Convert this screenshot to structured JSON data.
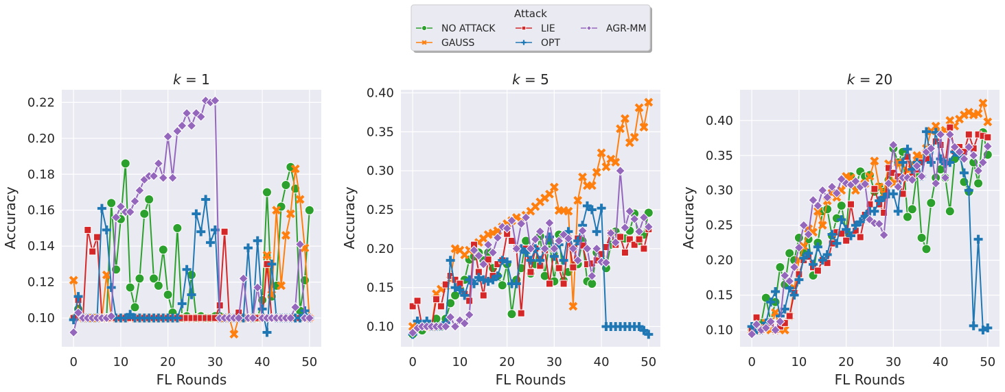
{
  "chart_data": {
    "type": "line",
    "legend": {
      "title": "Attack",
      "placement": "top-center",
      "order": [
        "no_attack",
        "lie",
        "agrmm",
        "gauss",
        "opt"
      ]
    },
    "series_defs": {
      "no_attack": {
        "name": "NO ATTACK",
        "color": "#2ca02c",
        "marker": "circle"
      },
      "gauss": {
        "name": "GAUSS",
        "color": "#ff7f0e",
        "marker": "x"
      },
      "lie": {
        "name": "LIE",
        "color": "#d62728",
        "marker": "square"
      },
      "opt": {
        "name": "OPT",
        "color": "#1f77b4",
        "marker": "plus"
      },
      "agrmm": {
        "name": "AGR-MM",
        "color": "#9467bd",
        "marker": "diamond"
      }
    },
    "panels": [
      {
        "title_prefix": "k",
        "title_value": "= 1",
        "xlabel": "FL Rounds",
        "ylabel": "Accuracy",
        "xlim": [
          -2.5,
          52.5
        ],
        "ylim": [
          0.084,
          0.227
        ],
        "xticks": [
          0,
          10,
          20,
          30,
          40,
          50
        ],
        "yticks": [
          0.1,
          0.12,
          0.14,
          0.16,
          0.18,
          0.2,
          0.22
        ],
        "ytick_labels": [
          "0.10",
          "0.12",
          "0.14",
          "0.16",
          "0.18",
          "0.20",
          "0.22"
        ],
        "series": {
          "no_attack": [
            0.1,
            0.105,
            0.1,
            0.1,
            0.1,
            0.1,
            0.1,
            0.1,
            0.164,
            0.127,
            0.155,
            0.186,
            0.117,
            0.106,
            0.122,
            0.158,
            0.166,
            0.122,
            0.118,
            0.138,
            0.113,
            0.103,
            0.15,
            0.1,
            0.101,
            0.124,
            0.1,
            0.101,
            0.1,
            0.1,
            0.101,
            0.101,
            0.1,
            0.1,
            0.1,
            0.1,
            0.1,
            0.1,
            0.1,
            0.1,
            0.11,
            0.17,
            0.112,
            0.118,
            0.162,
            0.174,
            0.184,
            0.172,
            0.104,
            0.121,
            0.16
          ],
          "gauss": [
            0.121,
            0.1,
            0.1,
            0.1,
            0.1,
            0.1,
            0.1,
            0.124,
            0.1,
            0.1,
            0.1,
            0.1,
            0.1,
            0.1,
            0.1,
            0.1,
            0.1,
            0.1,
            0.1,
            0.1,
            0.1,
            0.1,
            0.1,
            0.1,
            0.1,
            0.1,
            0.1,
            0.1,
            0.1,
            0.1,
            0.1,
            0.1,
            0.1,
            0.1,
            0.091,
            0.1,
            0.1,
            0.1,
            0.1,
            0.1,
            0.1,
            0.135,
            0.113,
            0.16,
            0.118,
            0.146,
            0.158,
            0.183,
            0.166,
            0.139,
            0.1
          ],
          "lie": [
            0.1,
            0.11,
            0.1,
            0.149,
            0.137,
            0.145,
            0.1,
            0.1,
            0.1,
            0.1,
            0.1,
            0.1,
            0.1,
            0.1,
            0.1,
            0.1,
            0.1,
            0.1,
            0.1,
            0.1,
            0.1,
            0.1,
            0.1,
            0.1,
            0.1,
            0.1,
            0.1,
            0.1,
            0.1,
            0.1,
            0.1,
            0.107,
            0.148,
            0.1,
            0.1,
            0.103,
            0.1,
            0.1,
            0.1,
            0.1,
            0.1,
            0.13,
            0.1,
            0.1,
            0.1,
            0.1,
            0.1,
            0.1,
            0.1,
            0.1,
            0.1
          ],
          "opt": [
            0.099,
            0.112,
            0.1,
            0.1,
            0.1,
            0.1,
            0.161,
            0.149,
            0.117,
            0.1,
            0.1,
            0.1,
            0.102,
            0.1,
            0.1,
            0.1,
            0.1,
            0.1,
            0.1,
            0.1,
            0.1,
            0.1,
            0.1,
            0.108,
            0.127,
            0.113,
            0.158,
            0.148,
            0.166,
            0.142,
            0.149,
            0.1,
            0.1,
            0.1,
            0.1,
            0.1,
            0.1,
            0.139,
            0.1,
            0.143,
            0.105,
            0.092,
            0.13,
            0.1,
            0.1,
            0.1,
            0.1,
            0.1,
            0.1,
            0.104,
            0.1
          ],
          "agrmm": [
            0.092,
            0.103,
            0.1,
            0.1,
            0.1,
            0.1,
            0.1,
            0.1,
            0.101,
            0.156,
            0.162,
            0.159,
            0.159,
            0.165,
            0.171,
            0.177,
            0.179,
            0.179,
            0.186,
            0.178,
            0.201,
            0.178,
            0.204,
            0.207,
            0.214,
            0.207,
            0.214,
            0.212,
            0.221,
            0.22,
            0.221,
            0.1,
            0.1,
            0.1,
            0.1,
            0.1,
            0.122,
            0.1,
            0.1,
            0.117,
            0.1,
            0.1,
            0.1,
            0.1,
            0.1,
            0.1,
            0.1,
            0.106,
            0.141,
            0.1,
            0.1
          ]
        }
      },
      {
        "title_prefix": "k",
        "title_value": "= 5",
        "xlabel": "FL Rounds",
        "ylabel": "Accuracy",
        "xlim": [
          -2.5,
          52.5
        ],
        "ylim": [
          0.074,
          0.404
        ],
        "xticks": [
          0,
          10,
          20,
          30,
          40,
          50
        ],
        "yticks": [
          0.1,
          0.15,
          0.2,
          0.25,
          0.3,
          0.35,
          0.4
        ],
        "ytick_labels": [
          "0.10",
          "0.15",
          "0.20",
          "0.25",
          "0.30",
          "0.35",
          "0.40"
        ],
        "series": {
          "no_attack": [
            0.09,
            0.1,
            0.095,
            0.1,
            0.1,
            0.11,
            0.1,
            0.11,
            0.13,
            0.14,
            0.15,
            0.16,
            0.186,
            0.19,
            0.195,
            0.185,
            0.195,
            0.175,
            0.165,
            0.153,
            0.18,
            0.116,
            0.16,
            0.175,
            0.21,
            0.168,
            0.18,
            0.216,
            0.165,
            0.21,
            0.158,
            0.218,
            0.159,
            0.17,
            0.178,
            0.18,
            0.21,
            0.158,
            0.155,
            0.195,
            0.19,
            0.175,
            0.205,
            0.222,
            0.215,
            0.213,
            0.223,
            0.245,
            0.21,
            0.218,
            0.246
          ],
          "gauss": [
            0.1,
            0.1,
            0.1,
            0.1,
            0.1,
            0.142,
            0.148,
            0.152,
            0.16,
            0.2,
            0.198,
            0.192,
            0.198,
            0.203,
            0.208,
            0.213,
            0.218,
            0.22,
            0.223,
            0.228,
            0.232,
            0.236,
            0.24,
            0.236,
            0.243,
            0.248,
            0.254,
            0.26,
            0.265,
            0.27,
            0.279,
            0.249,
            0.249,
            0.248,
            0.126,
            0.262,
            0.292,
            0.281,
            0.281,
            0.298,
            0.323,
            0.305,
            0.315,
            0.311,
            0.354,
            0.367,
            0.336,
            0.343,
            0.381,
            0.356,
            0.388
          ],
          "lie": [
            0.126,
            0.133,
            0.1,
            0.1,
            0.1,
            0.135,
            0.126,
            0.154,
            0.165,
            0.16,
            0.155,
            0.142,
            0.133,
            0.205,
            0.17,
            0.14,
            0.186,
            0.165,
            0.18,
            0.185,
            0.219,
            0.21,
            0.2,
            0.117,
            0.2,
            0.17,
            0.2,
            0.178,
            0.198,
            0.155,
            0.2,
            0.175,
            0.155,
            0.213,
            0.176,
            0.213,
            0.204,
            0.18,
            0.181,
            0.185,
            0.193,
            0.202,
            0.22,
            0.205,
            0.215,
            0.195,
            0.212,
            0.205,
            0.212,
            0.2,
            0.225
          ],
          "opt": [
            0.09,
            0.107,
            0.1,
            0.107,
            0.1,
            0.1,
            0.1,
            0.105,
            0.185,
            0.15,
            0.147,
            0.14,
            0.16,
            0.155,
            0.163,
            0.16,
            0.158,
            0.16,
            0.165,
            0.185,
            0.183,
            0.155,
            0.155,
            0.2,
            0.195,
            0.185,
            0.2,
            0.185,
            0.2,
            0.215,
            0.19,
            0.205,
            0.185,
            0.222,
            0.2,
            0.21,
            0.23,
            0.255,
            0.25,
            0.222,
            0.252,
            0.1,
            0.1,
            0.1,
            0.1,
            0.1,
            0.1,
            0.1,
            0.1,
            0.095,
            0.09
          ],
          "agrmm": [
            0.092,
            0.098,
            0.1,
            0.1,
            0.1,
            0.1,
            0.1,
            0.1,
            0.112,
            0.1,
            0.108,
            0.104,
            0.115,
            0.198,
            0.191,
            0.18,
            0.205,
            0.195,
            0.214,
            0.228,
            0.226,
            0.236,
            0.2,
            0.232,
            0.24,
            0.2,
            0.212,
            0.222,
            0.2,
            0.233,
            0.2,
            0.21,
            0.218,
            0.213,
            0.2,
            0.185,
            0.223,
            0.2,
            0.165,
            0.2,
            0.183,
            0.182,
            0.22,
            0.208,
            0.3,
            0.227,
            0.248,
            0.238,
            0.222,
            0.24,
            0.228
          ]
        }
      },
      {
        "title_prefix": "k",
        "title_value": "= 20",
        "xlabel": "FL Rounds",
        "ylabel": "Accuracy",
        "xlim": [
          -2.5,
          52.5
        ],
        "ylim": [
          0.076,
          0.444
        ],
        "xticks": [
          0,
          10,
          20,
          30,
          40,
          50
        ],
        "yticks": [
          0.1,
          0.15,
          0.2,
          0.25,
          0.3,
          0.35,
          0.4
        ],
        "ytick_labels": [
          "0.10",
          "0.15",
          "0.20",
          "0.25",
          "0.30",
          "0.35",
          "0.40"
        ],
        "series": {
          "no_attack": [
            0.1,
            0.1,
            0.11,
            0.146,
            0.112,
            0.14,
            0.19,
            0.165,
            0.21,
            0.2,
            0.232,
            0.21,
            0.23,
            0.178,
            0.225,
            0.27,
            0.273,
            0.235,
            0.26,
            0.278,
            0.24,
            0.32,
            0.305,
            0.327,
            0.32,
            0.322,
            0.298,
            0.305,
            0.298,
            0.315,
            0.36,
            0.34,
            0.355,
            0.262,
            0.273,
            0.325,
            0.232,
            0.216,
            0.282,
            0.318,
            0.33,
            0.318,
            0.27,
            0.345,
            0.36,
            0.312,
            0.298,
            0.34,
            0.31,
            0.383,
            0.351
          ],
          "gauss": [
            0.1,
            0.1,
            0.105,
            0.11,
            0.1,
            0.125,
            0.1,
            0.1,
            0.12,
            0.16,
            0.2,
            0.22,
            0.245,
            0.24,
            0.27,
            0.25,
            0.285,
            0.296,
            0.29,
            0.3,
            0.32,
            0.318,
            0.3,
            0.31,
            0.31,
            0.32,
            0.342,
            0.305,
            0.295,
            0.338,
            0.31,
            0.34,
            0.318,
            0.328,
            0.338,
            0.35,
            0.348,
            0.36,
            0.385,
            0.392,
            0.383,
            0.386,
            0.4,
            0.392,
            0.402,
            0.408,
            0.412,
            0.408,
            0.41,
            0.425,
            0.398
          ],
          "lie": [
            0.1,
            0.118,
            0.1,
            0.105,
            0.11,
            0.1,
            0.105,
            0.11,
            0.12,
            0.153,
            0.18,
            0.2,
            0.205,
            0.19,
            0.185,
            0.2,
            0.196,
            0.224,
            0.24,
            0.238,
            0.228,
            0.28,
            0.242,
            0.233,
            0.265,
            0.28,
            0.302,
            0.28,
            0.268,
            0.332,
            0.325,
            0.32,
            0.295,
            0.348,
            0.32,
            0.33,
            0.34,
            0.345,
            0.362,
            0.37,
            0.365,
            0.34,
            0.39,
            0.356,
            0.362,
            0.355,
            0.38,
            0.36,
            0.38,
            0.378,
            0.376
          ],
          "opt": [
            0.105,
            0.1,
            0.1,
            0.11,
            0.14,
            0.155,
            0.12,
            0.13,
            0.16,
            0.15,
            0.172,
            0.203,
            0.21,
            0.194,
            0.219,
            0.2,
            0.208,
            0.237,
            0.224,
            0.258,
            0.244,
            0.235,
            0.25,
            0.255,
            0.263,
            0.27,
            0.27,
            0.285,
            0.29,
            0.295,
            0.295,
            0.27,
            0.34,
            0.359,
            0.33,
            0.34,
            0.32,
            0.384,
            0.34,
            0.383,
            0.345,
            0.338,
            0.34,
            0.355,
            0.35,
            0.325,
            0.3,
            0.106,
            0.23,
            0.1,
            0.103
          ],
          "agrmm": [
            0.094,
            0.108,
            0.1,
            0.103,
            0.112,
            0.1,
            0.112,
            0.178,
            0.17,
            0.19,
            0.218,
            0.25,
            0.237,
            0.286,
            0.278,
            0.3,
            0.29,
            0.305,
            0.296,
            0.316,
            0.31,
            0.308,
            0.313,
            0.305,
            0.309,
            0.258,
            0.253,
            0.252,
            0.236,
            0.31,
            0.365,
            0.305,
            0.318,
            0.318,
            0.315,
            0.335,
            0.32,
            0.355,
            0.36,
            0.31,
            0.38,
            0.318,
            0.38,
            0.362,
            0.355,
            0.345,
            0.362,
            0.35,
            0.328,
            0.34,
            0.363
          ]
        }
      }
    ]
  }
}
